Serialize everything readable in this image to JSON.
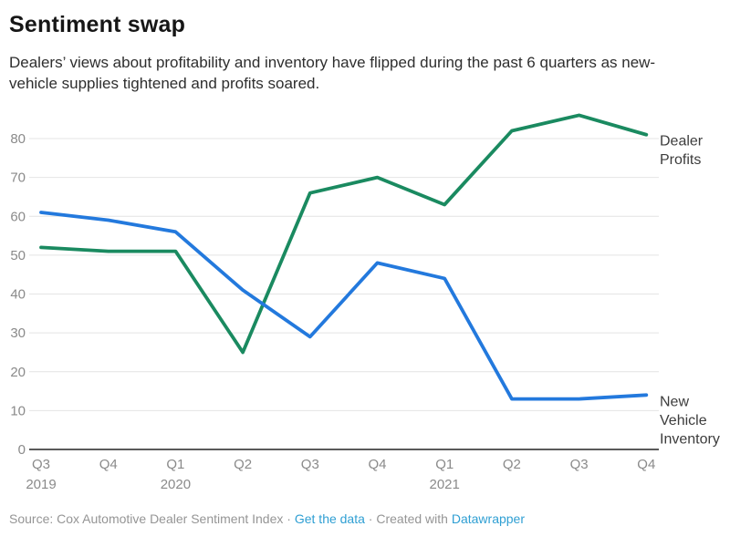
{
  "header": {
    "title": "Sentiment swap",
    "subtitle": "Dealers’ views about profitability and inventory have flipped during the past 6 quarters as new-vehicle supplies tightened and profits soared."
  },
  "chart_data": {
    "type": "line",
    "title": "Sentiment swap",
    "xlabel": "",
    "ylabel": "",
    "grid": true,
    "legend_position": "right-edge-direct-labels",
    "ylim": [
      0,
      88
    ],
    "y_ticks": [
      0,
      10,
      20,
      30,
      40,
      50,
      60,
      70,
      80
    ],
    "categories": [
      {
        "quarter": "Q3",
        "year": "2019"
      },
      {
        "quarter": "Q4"
      },
      {
        "quarter": "Q1",
        "year": "2020"
      },
      {
        "quarter": "Q2"
      },
      {
        "quarter": "Q3"
      },
      {
        "quarter": "Q4"
      },
      {
        "quarter": "Q1",
        "year": "2021"
      },
      {
        "quarter": "Q2"
      },
      {
        "quarter": "Q3"
      },
      {
        "quarter": "Q4"
      }
    ],
    "series": [
      {
        "name": "Dealer Profits",
        "label_lines": [
          "Dealer",
          "Profits"
        ],
        "color": "#1a8a60",
        "values": [
          52,
          51,
          51,
          25,
          66,
          70,
          63,
          82,
          86,
          81
        ]
      },
      {
        "name": "New Vehicle Inventory",
        "label_lines": [
          "New",
          "Vehicle",
          "Inventory"
        ],
        "color": "#2379dd",
        "values": [
          61,
          59,
          56,
          41,
          29,
          48,
          44,
          13,
          13,
          14
        ]
      }
    ]
  },
  "footer": {
    "source_text": "Source: Cox Automotive Dealer Sentiment Index",
    "sep1": "·",
    "get_data_label": "Get the data",
    "sep2": "·",
    "created_with": "Created with",
    "datawrapper_label": "Datawrapper"
  },
  "colors": {
    "series_green": "#1a8a60",
    "series_blue": "#2379dd",
    "link_blue": "#2f9fd3",
    "grid": "#e4e4e4",
    "axis_line": "#424242",
    "tick_label": "#8a8a8a"
  }
}
